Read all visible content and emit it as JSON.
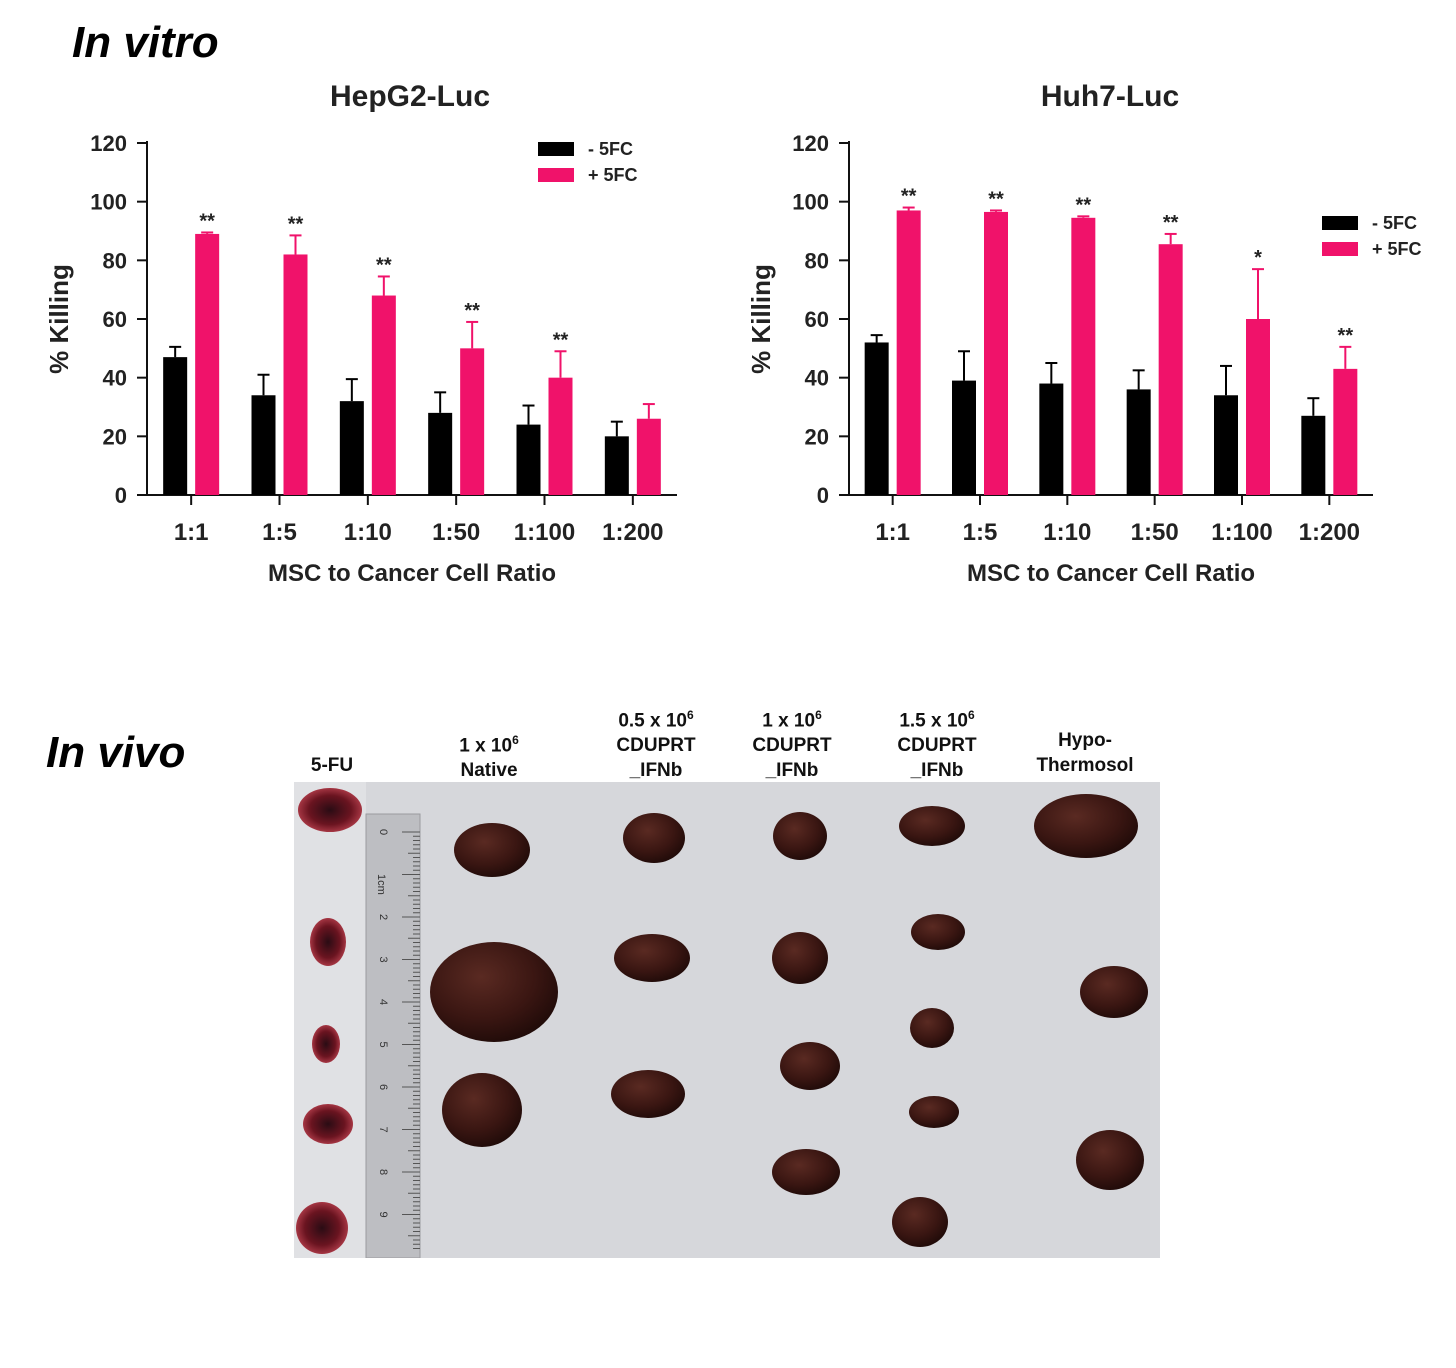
{
  "figure": {
    "in_vitro_title": "In vitro",
    "in_vivo_title": "In vivo"
  },
  "colors": {
    "minus_5fc": "#000000",
    "plus_5fc": "#f0126a",
    "photo_background": "#d7d8dc",
    "tumor": "#3b1714"
  },
  "chart_data": [
    {
      "type": "bar",
      "title": "HepG2-Luc",
      "xlabel": "MSC to Cancer Cell Ratio",
      "ylabel": "% Killing",
      "ylim": [
        0,
        120
      ],
      "yticks": [
        0,
        20,
        40,
        60,
        80,
        100,
        120
      ],
      "grid": false,
      "legend_position": "top-right",
      "categories": [
        "1:1",
        "1:5",
        "1:10",
        "1:50",
        "1:100",
        "1:200"
      ],
      "series": [
        {
          "name": "- 5FC",
          "color": "#000000",
          "values": [
            47,
            34,
            32,
            28,
            24,
            20
          ],
          "error": [
            3.5,
            7,
            7.5,
            7,
            6.5,
            5
          ]
        },
        {
          "name": "+ 5FC",
          "color": "#f0126a",
          "values": [
            89,
            82,
            68,
            50,
            40,
            26
          ],
          "error": [
            0.5,
            6.5,
            6.5,
            9,
            9,
            5
          ]
        }
      ],
      "annotations": [
        "**",
        "**",
        "**",
        "**",
        "**",
        ""
      ]
    },
    {
      "type": "bar",
      "title": "Huh7-Luc",
      "xlabel": "MSC to Cancer Cell Ratio",
      "ylabel": "% Killing",
      "ylim": [
        0,
        120
      ],
      "yticks": [
        0,
        20,
        40,
        60,
        80,
        100,
        120
      ],
      "grid": false,
      "legend_position": "right",
      "categories": [
        "1:1",
        "1:5",
        "1:10",
        "1:50",
        "1:100",
        "1:200"
      ],
      "series": [
        {
          "name": "- 5FC",
          "color": "#000000",
          "values": [
            52,
            39,
            38,
            36,
            34,
            27
          ],
          "error": [
            2.5,
            10,
            7,
            6.5,
            10,
            6
          ]
        },
        {
          "name": "+ 5FC",
          "color": "#f0126a",
          "values": [
            97,
            96.5,
            94.5,
            85.5,
            60,
            43
          ],
          "error": [
            1,
            0.5,
            0.5,
            3.5,
            17,
            7.5
          ]
        }
      ],
      "annotations": [
        "**",
        "**",
        "**",
        "**",
        "*",
        "**"
      ]
    }
  ],
  "in_vivo": {
    "groups": [
      {
        "line1": "5-FU",
        "line2": "",
        "line3": ""
      },
      {
        "line1": "1 x 10",
        "exponent": "6",
        "line2": "Native",
        "line3": ""
      },
      {
        "line1": "0.5 x 10",
        "exponent": "6",
        "line2": "CDUPRT",
        "line3": "_IFNb"
      },
      {
        "line1": "1 x 10",
        "exponent": "6",
        "line2": "CDUPRT",
        "line3": "_IFNb"
      },
      {
        "line1": "1.5 x 10",
        "exponent": "6",
        "line2": "CDUPRT",
        "line3": "_IFNb"
      },
      {
        "line1": "Hypo-",
        "line2": "Thermosol",
        "line3": ""
      }
    ],
    "ruler": {
      "unit_label": "1cm",
      "numbers": [
        "0",
        "2",
        "3",
        "4",
        "5",
        "6",
        "7",
        "8",
        "9"
      ]
    }
  }
}
